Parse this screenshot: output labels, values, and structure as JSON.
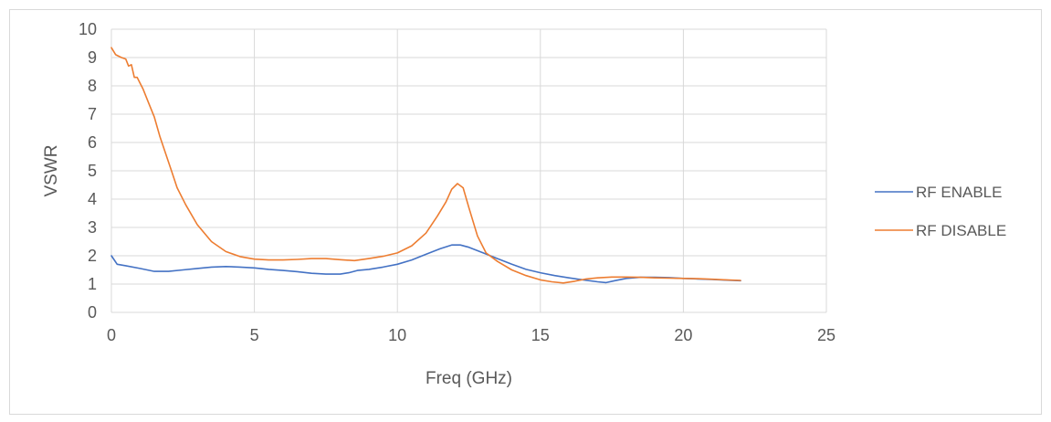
{
  "chart_data": {
    "type": "line",
    "title": "",
    "xlabel": "Freq (GHz)",
    "ylabel": "VSWR",
    "xlim": [
      0,
      25
    ],
    "ylim": [
      0,
      10
    ],
    "xticks": [
      0,
      5,
      10,
      15,
      20,
      25
    ],
    "yticks": [
      0,
      1,
      2,
      3,
      4,
      5,
      6,
      7,
      8,
      9,
      10
    ],
    "grid": true,
    "legend_position": "right",
    "series": [
      {
        "name": "RF ENABLE",
        "color": "#4472c4",
        "x": [
          0,
          0.2,
          0.5,
          1.0,
          1.5,
          2.0,
          2.5,
          3.0,
          3.5,
          4.0,
          4.5,
          5.0,
          5.5,
          6.0,
          6.5,
          7.0,
          7.5,
          8.0,
          8.3,
          8.6,
          9.0,
          9.5,
          10.0,
          10.5,
          11.0,
          11.5,
          11.9,
          12.2,
          12.5,
          13.0,
          13.5,
          14.0,
          14.5,
          15.0,
          15.5,
          16.0,
          16.5,
          17.0,
          17.3,
          17.6,
          18.0,
          18.5,
          19.0,
          19.5,
          20.0,
          20.5,
          21.0,
          21.5,
          22.0
        ],
        "y": [
          2.0,
          1.7,
          1.65,
          1.55,
          1.45,
          1.45,
          1.5,
          1.55,
          1.6,
          1.62,
          1.6,
          1.57,
          1.52,
          1.48,
          1.44,
          1.38,
          1.35,
          1.35,
          1.4,
          1.48,
          1.52,
          1.6,
          1.7,
          1.85,
          2.05,
          2.25,
          2.38,
          2.38,
          2.3,
          2.1,
          1.9,
          1.7,
          1.52,
          1.4,
          1.3,
          1.22,
          1.15,
          1.08,
          1.05,
          1.12,
          1.2,
          1.24,
          1.24,
          1.23,
          1.2,
          1.18,
          1.16,
          1.14,
          1.12
        ]
      },
      {
        "name": "RF DISABLE",
        "color": "#ed7d31",
        "x": [
          0,
          0.15,
          0.35,
          0.5,
          0.6,
          0.7,
          0.8,
          0.9,
          1.0,
          1.1,
          1.3,
          1.5,
          1.7,
          1.9,
          2.1,
          2.3,
          2.6,
          3.0,
          3.5,
          4.0,
          4.5,
          5.0,
          5.5,
          6.0,
          6.5,
          7.0,
          7.5,
          8.0,
          8.5,
          9.0,
          9.5,
          10.0,
          10.5,
          11.0,
          11.4,
          11.7,
          11.9,
          12.1,
          12.3,
          12.5,
          12.8,
          13.1,
          13.5,
          14.0,
          14.5,
          15.0,
          15.4,
          15.8,
          16.2,
          16.6,
          17.0,
          17.5,
          18.0,
          18.5,
          19.0,
          19.5,
          20.0,
          20.5,
          21.0,
          21.5,
          22.0
        ],
        "y": [
          9.35,
          9.1,
          9.0,
          8.95,
          8.7,
          8.75,
          8.3,
          8.3,
          8.1,
          7.9,
          7.4,
          6.9,
          6.2,
          5.6,
          5.0,
          4.4,
          3.8,
          3.1,
          2.5,
          2.15,
          1.97,
          1.88,
          1.85,
          1.85,
          1.87,
          1.9,
          1.9,
          1.86,
          1.83,
          1.9,
          1.98,
          2.1,
          2.35,
          2.8,
          3.4,
          3.9,
          4.35,
          4.55,
          4.4,
          3.7,
          2.7,
          2.1,
          1.8,
          1.5,
          1.3,
          1.15,
          1.08,
          1.04,
          1.1,
          1.18,
          1.22,
          1.25,
          1.25,
          1.24,
          1.22,
          1.21,
          1.2,
          1.19,
          1.17,
          1.15,
          1.13
        ]
      }
    ]
  }
}
